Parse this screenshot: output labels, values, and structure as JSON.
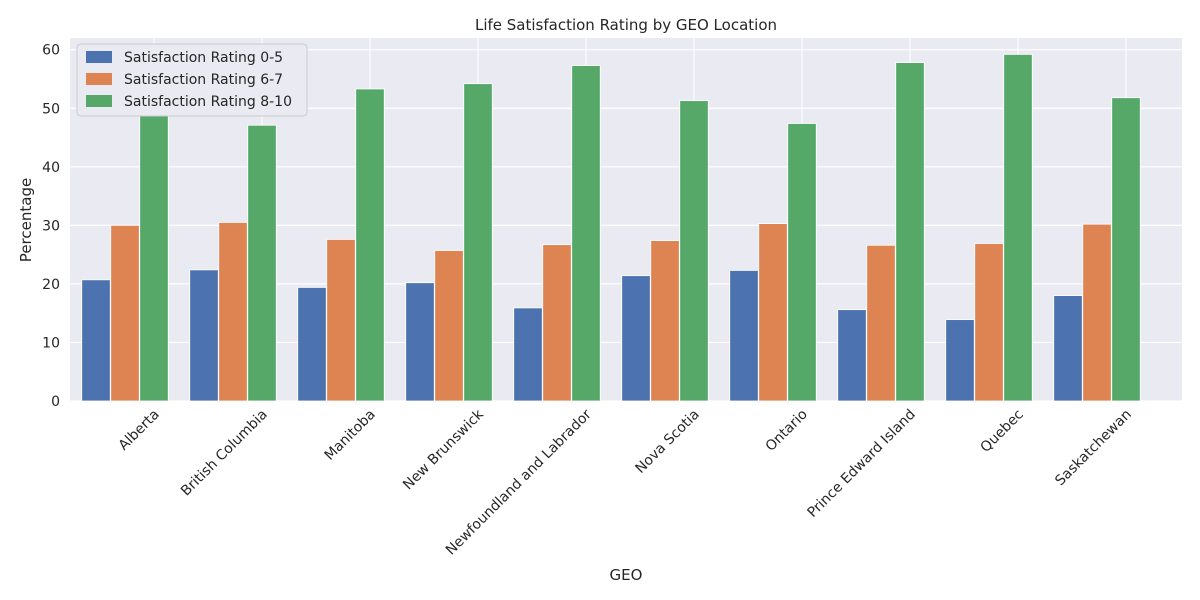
{
  "chart_data": {
    "type": "bar",
    "title": "Life Satisfaction Rating by GEO Location",
    "xlabel": "GEO",
    "ylabel": "Percentage",
    "ylim": [
      0,
      62
    ],
    "yticks": [
      0,
      10,
      20,
      30,
      40,
      50,
      60
    ],
    "grid": true,
    "legend_position": "top-left",
    "categories": [
      "Alberta",
      "British Columbia",
      "Manitoba",
      "New Brunswick",
      "Newfoundland and Labrador",
      "Nova Scotia",
      "Ontario",
      "Prince Edward Island",
      "Quebec",
      "Saskatchewan"
    ],
    "series": [
      {
        "name": "Satisfaction Rating 0-5",
        "color": "#4c72b0",
        "values": [
          20.7,
          22.4,
          19.4,
          20.2,
          15.9,
          21.4,
          22.3,
          15.6,
          13.9,
          18.0
        ]
      },
      {
        "name": "Satisfaction Rating 6-7",
        "color": "#dd8452",
        "values": [
          30.0,
          30.5,
          27.6,
          25.7,
          26.7,
          27.4,
          30.3,
          26.6,
          26.9,
          30.2
        ]
      },
      {
        "name": "Satisfaction Rating 8-10",
        "color": "#55a868",
        "values": [
          49.3,
          47.1,
          53.3,
          54.2,
          57.3,
          51.3,
          47.4,
          57.8,
          59.2,
          51.8
        ]
      }
    ]
  }
}
